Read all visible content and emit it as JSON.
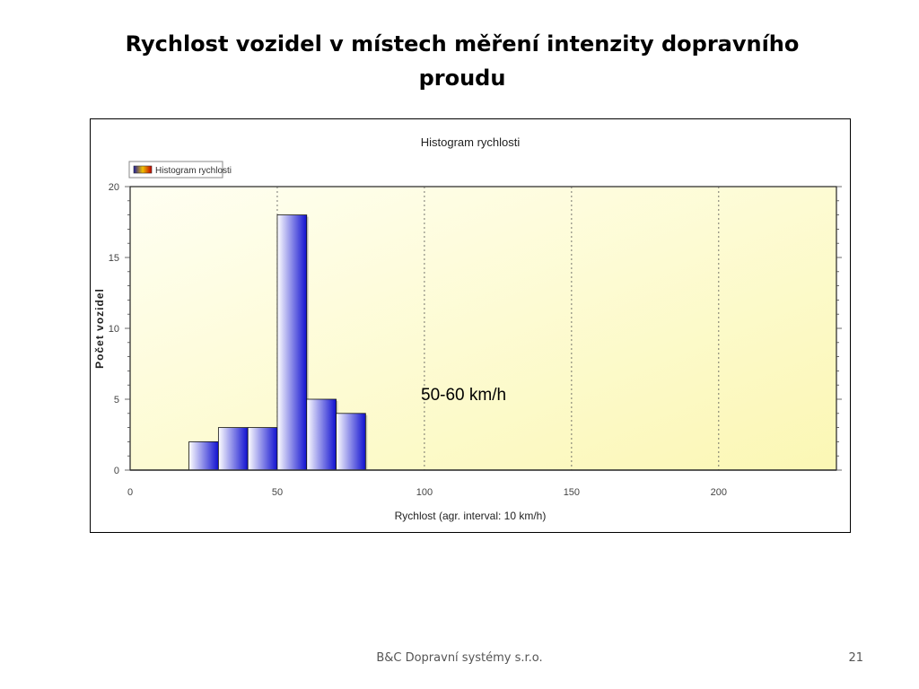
{
  "slide": {
    "title": "Rychlost vozidel v místech měření intenzity dopravního proudu",
    "footer": "B&C Dopravní systémy s.r.o.",
    "page_number": "21"
  },
  "chart_data": {
    "type": "bar",
    "title": "Histogram rychlosti",
    "legend_label": "Histogram rychlosti",
    "legend_position": "top-left",
    "xlabel": "Rychlost (agr. interval: 10 km/h)",
    "ylabel": "Počet vozidel",
    "xlim": [
      0,
      240
    ],
    "ylim": [
      0,
      20
    ],
    "x_ticks": [
      0,
      50,
      100,
      150,
      200
    ],
    "y_ticks": [
      0,
      5,
      10,
      15,
      20
    ],
    "bin_width": 10,
    "bins": [
      {
        "start": 20,
        "value": 2
      },
      {
        "start": 30,
        "value": 3
      },
      {
        "start": 40,
        "value": 3
      },
      {
        "start": 50,
        "value": 18
      },
      {
        "start": 60,
        "value": 5
      },
      {
        "start": 70,
        "value": 4
      }
    ],
    "annotation": "50-60 km/h",
    "colors": {
      "bar_dark": "#1010d0",
      "bar_light": "#ffffff",
      "plot_bg_start": "#fffff2",
      "plot_bg_end": "#fbf7b4"
    }
  }
}
